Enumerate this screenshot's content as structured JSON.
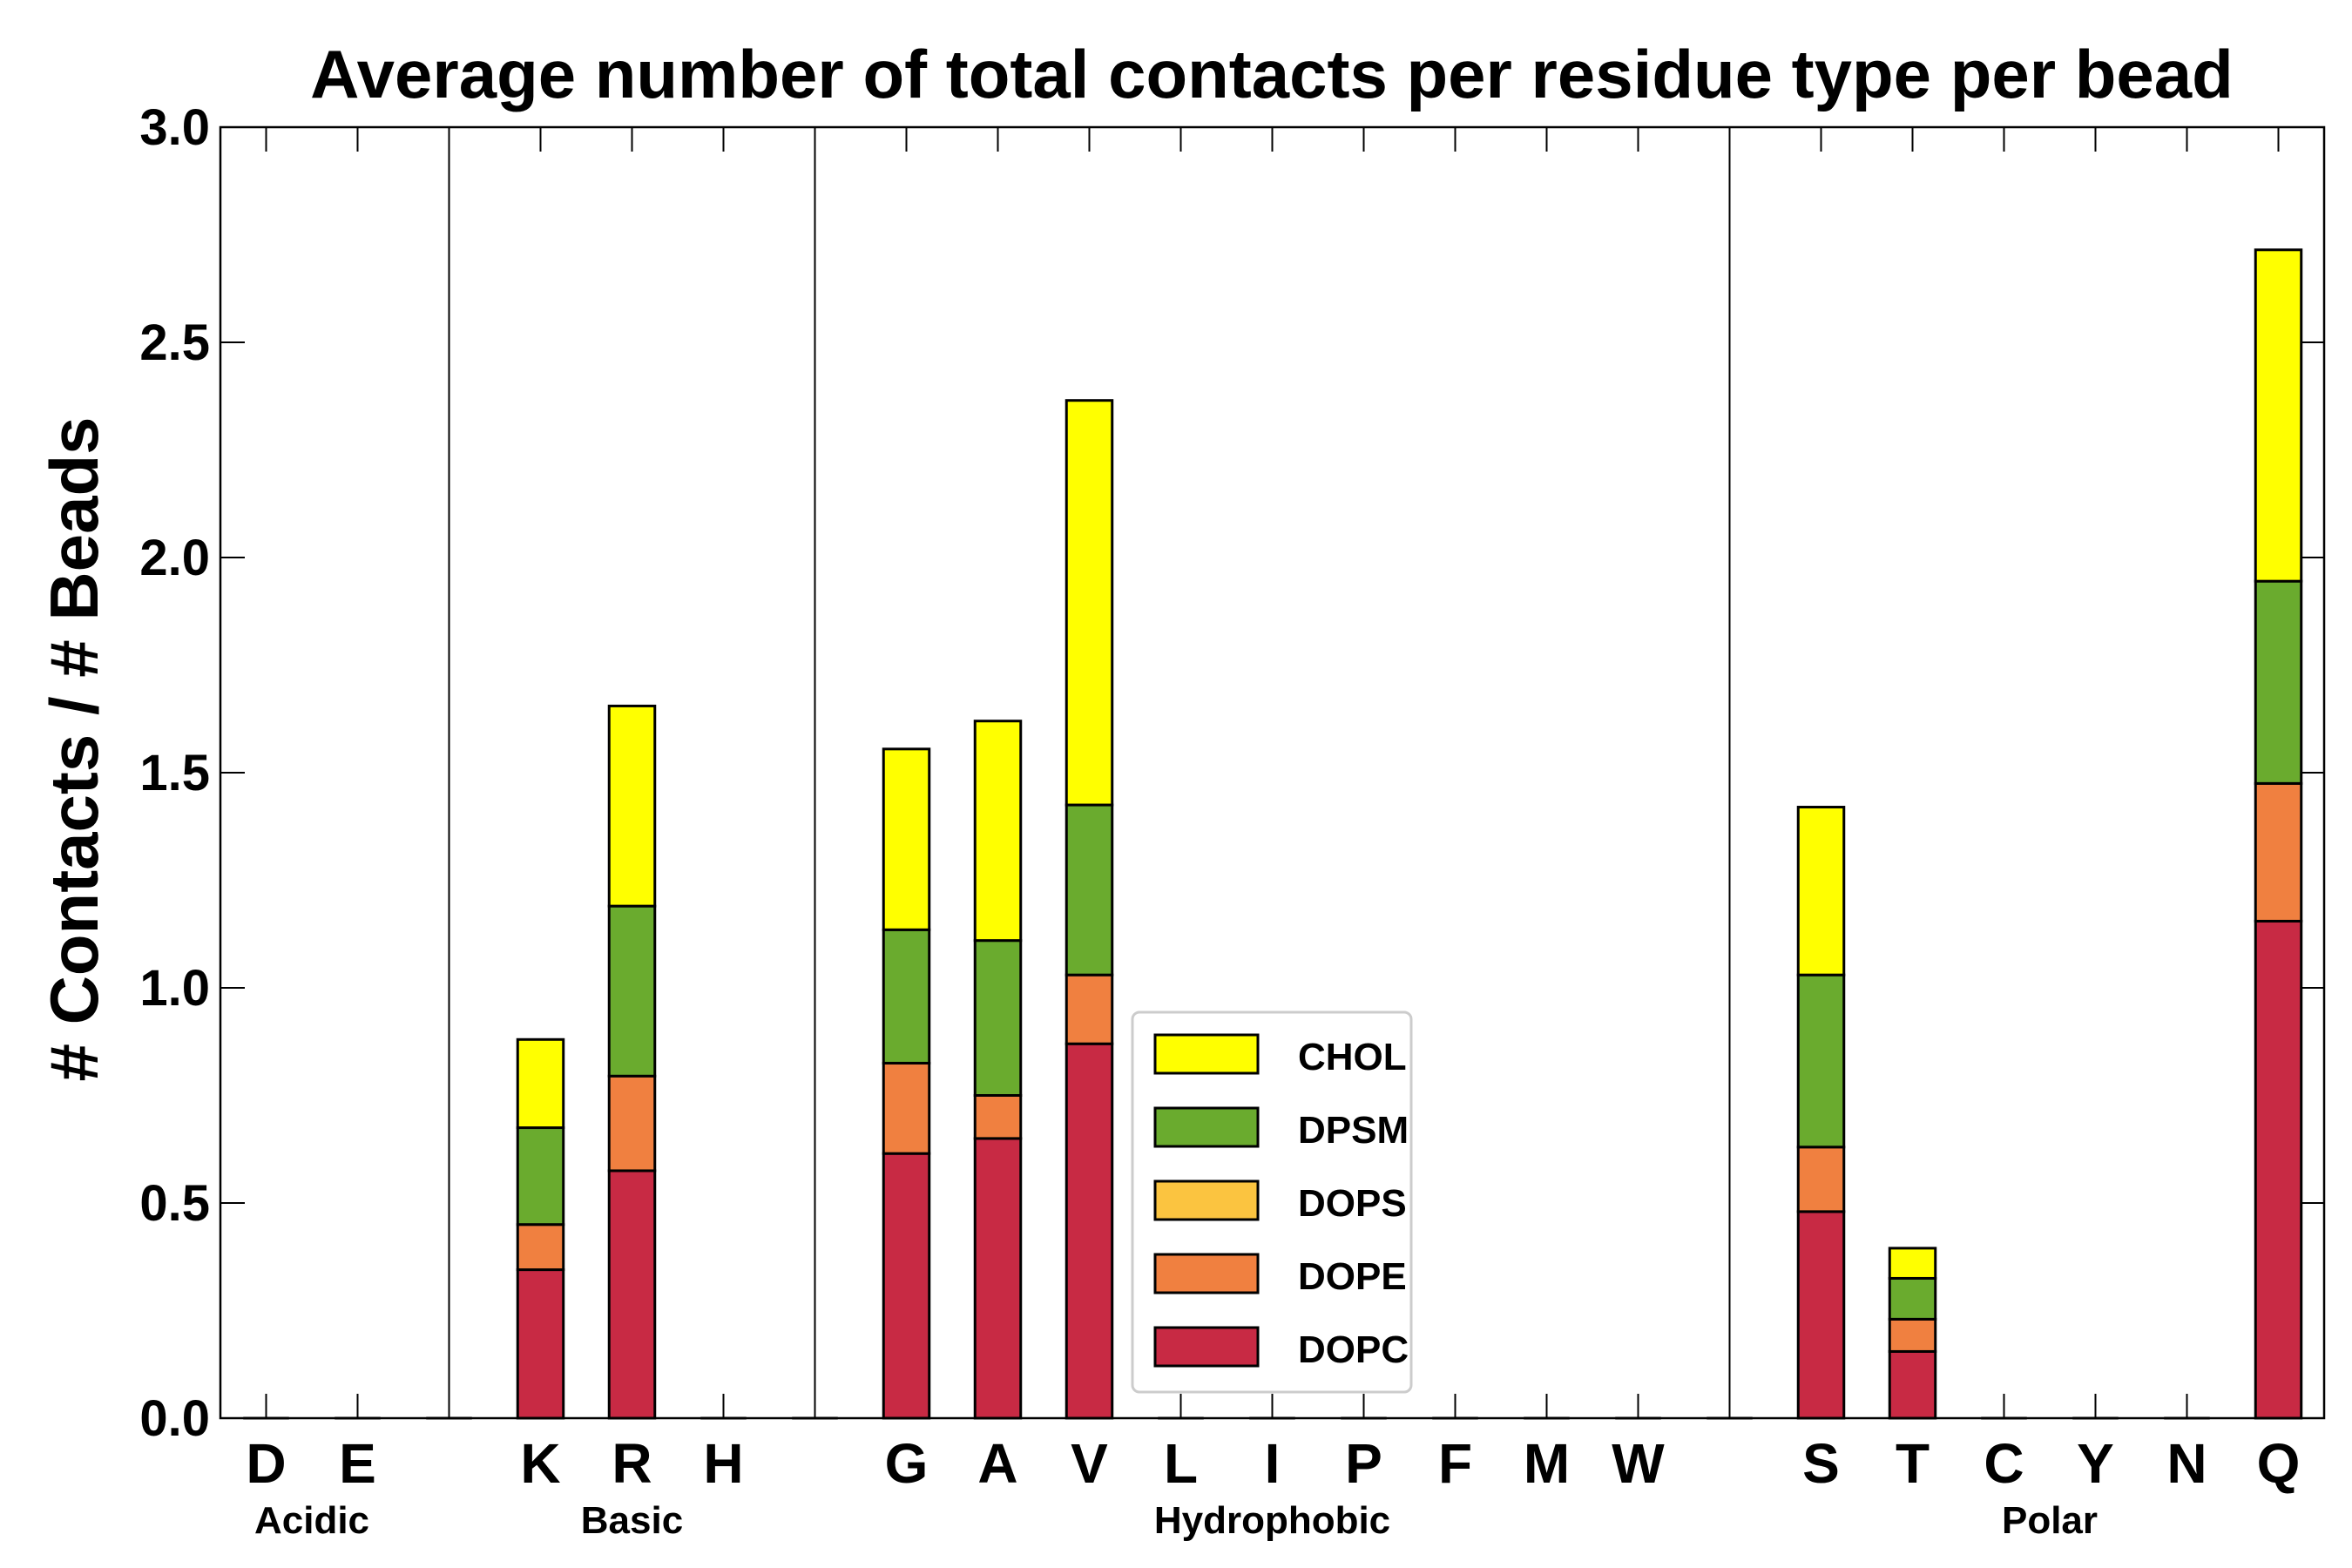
{
  "chart_data": {
    "type": "bar",
    "stacked": true,
    "title": "Average number of total contacts per residue type per bead",
    "xlabel": "",
    "ylabel": "# Contacts / # Beads",
    "ylim": [
      0,
      3.0
    ],
    "yticks": [
      "0.0",
      "0.5",
      "1.0",
      "1.5",
      "2.0",
      "2.5",
      "3.0"
    ],
    "grid": false,
    "legend_position": "lower-center",
    "categories": [
      "D",
      "E",
      "",
      "K",
      "R",
      "H",
      "",
      "G",
      "A",
      "V",
      "L",
      "I",
      "P",
      "F",
      "M",
      "W",
      "",
      "S",
      "T",
      "C",
      "Y",
      "N",
      "Q"
    ],
    "groups": [
      {
        "name": "Acidic",
        "members": [
          "D",
          "E"
        ]
      },
      {
        "name": "Basic",
        "members": [
          "K",
          "R",
          "H"
        ]
      },
      {
        "name": "Hydrophobic",
        "members": [
          "G",
          "A",
          "V",
          "L",
          "I",
          "P",
          "F",
          "M",
          "W"
        ]
      },
      {
        "name": "Polar",
        "members": [
          "S",
          "T",
          "C",
          "Y",
          "N",
          "Q"
        ]
      }
    ],
    "series": [
      {
        "name": "DOPC",
        "color": "#c82a44",
        "values": [
          0,
          0,
          0,
          0.345,
          0.575,
          0,
          0,
          0.615,
          0.65,
          0.87,
          0,
          0,
          0,
          0,
          0,
          0,
          0,
          0.48,
          0.155,
          0,
          0,
          0,
          1.155
        ]
      },
      {
        "name": "DOPE",
        "color": "#f08040",
        "values": [
          0,
          0,
          0,
          0.105,
          0.22,
          0,
          0,
          0.21,
          0.1,
          0.16,
          0,
          0,
          0,
          0,
          0,
          0,
          0,
          0.15,
          0.075,
          0,
          0,
          0,
          0.32
        ]
      },
      {
        "name": "DOPS",
        "color": "#fbc440",
        "values": [
          0,
          0,
          0,
          0,
          0,
          0,
          0,
          0,
          0,
          0,
          0,
          0,
          0,
          0,
          0,
          0,
          0,
          0,
          0,
          0,
          0,
          0,
          0
        ]
      },
      {
        "name": "DPSM",
        "color": "#6aab2e",
        "values": [
          0,
          0,
          0,
          0.225,
          0.395,
          0,
          0,
          0.31,
          0.36,
          0.395,
          0,
          0,
          0,
          0,
          0,
          0,
          0,
          0.4,
          0.095,
          0,
          0,
          0,
          0.47
        ]
      },
      {
        "name": "CHOL",
        "color": "#ffff00",
        "values": [
          0,
          0,
          0,
          0.205,
          0.465,
          0,
          0,
          0.42,
          0.51,
          0.94,
          0,
          0,
          0,
          0,
          0,
          0,
          0,
          0.39,
          0.07,
          0,
          0,
          0,
          0.77
        ]
      }
    ],
    "legend_order": [
      "CHOL",
      "DPSM",
      "DOPS",
      "DOPE",
      "DOPC"
    ]
  }
}
